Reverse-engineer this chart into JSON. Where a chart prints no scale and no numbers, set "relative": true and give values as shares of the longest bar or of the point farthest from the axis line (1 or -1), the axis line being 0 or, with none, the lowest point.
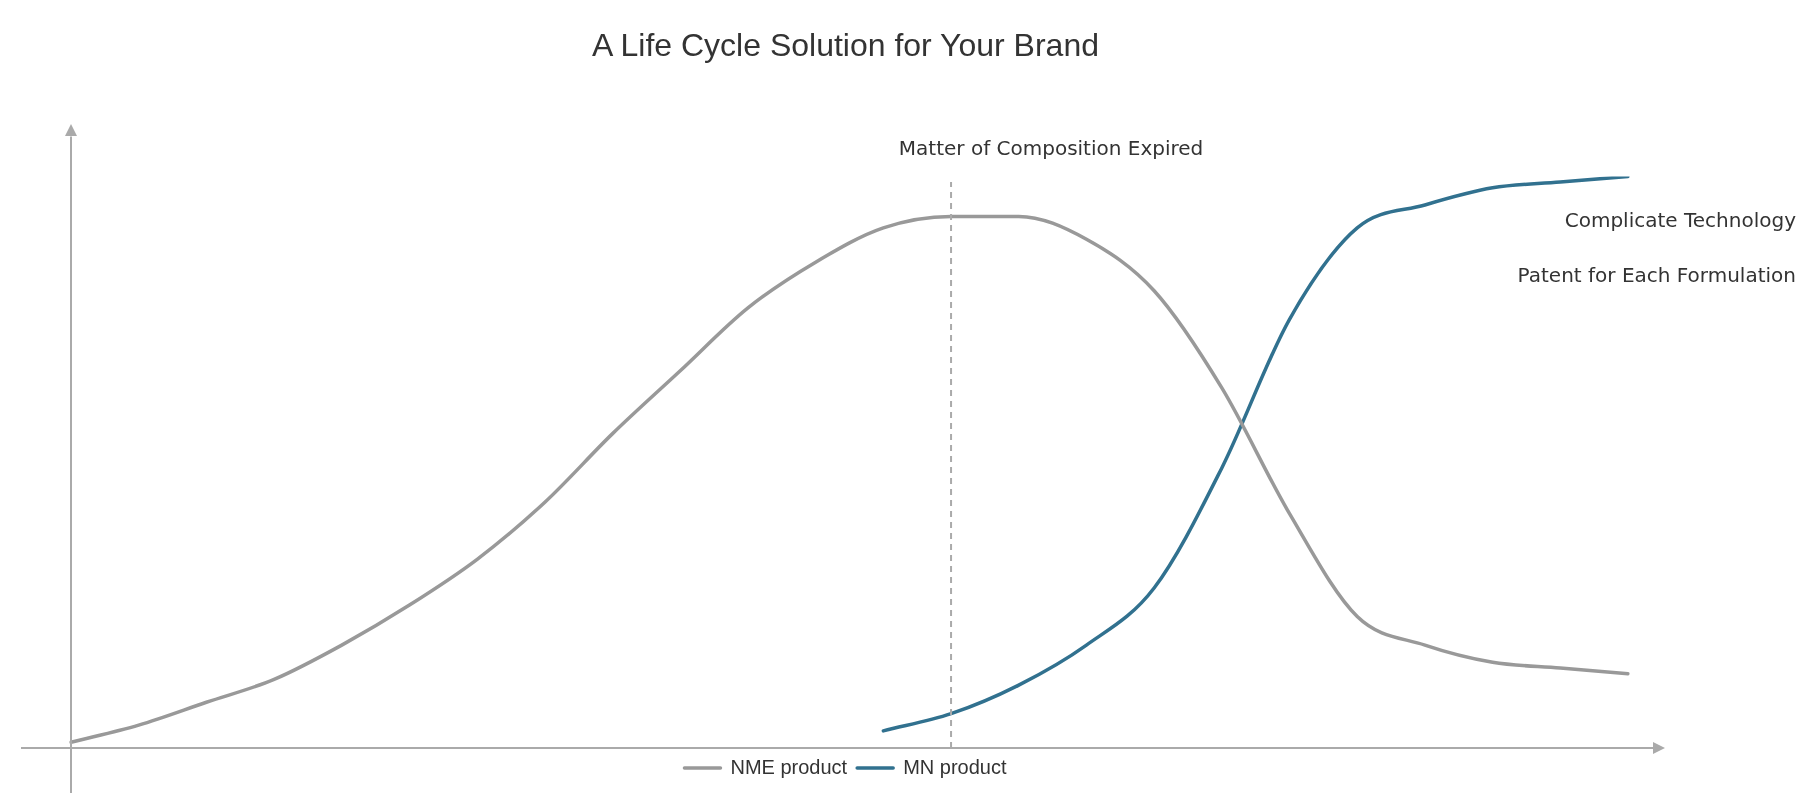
{
  "chart_data": {
    "type": "line",
    "title": "A Life Cycle Solution for Your Brand",
    "relative": true,
    "categories": [
      null,
      null,
      null,
      null,
      null,
      null,
      null,
      null,
      null,
      null,
      null,
      null,
      null,
      null,
      null,
      null,
      null,
      null,
      null,
      null,
      null,
      null,
      null,
      null
    ],
    "series": [
      {
        "name": "NME product",
        "color": "#999999",
        "values": [
          0.01,
          0.04,
          0.08,
          0.12,
          0.18,
          0.25,
          0.33,
          0.43,
          0.55,
          0.66,
          0.77,
          0.85,
          0.91,
          0.93,
          0.93,
          0.89,
          0.8,
          0.63,
          0.41,
          0.23,
          0.18,
          0.15,
          0.14,
          0.13
        ]
      },
      {
        "name": "MN product",
        "color": "#31718f",
        "values": [
          null,
          null,
          null,
          null,
          null,
          null,
          null,
          null,
          null,
          null,
          null,
          null,
          0.03,
          0.06,
          0.11,
          0.18,
          0.28,
          0.49,
          0.75,
          0.91,
          0.95,
          0.98,
          0.99,
          1.0
        ]
      }
    ],
    "annotations": [
      "Matter of Composition Expired",
      "Complicate Technology",
      "Patent for Each Formulation"
    ],
    "legend": "bottom",
    "grid": false,
    "marker": "none",
    "line_style": "solid"
  }
}
